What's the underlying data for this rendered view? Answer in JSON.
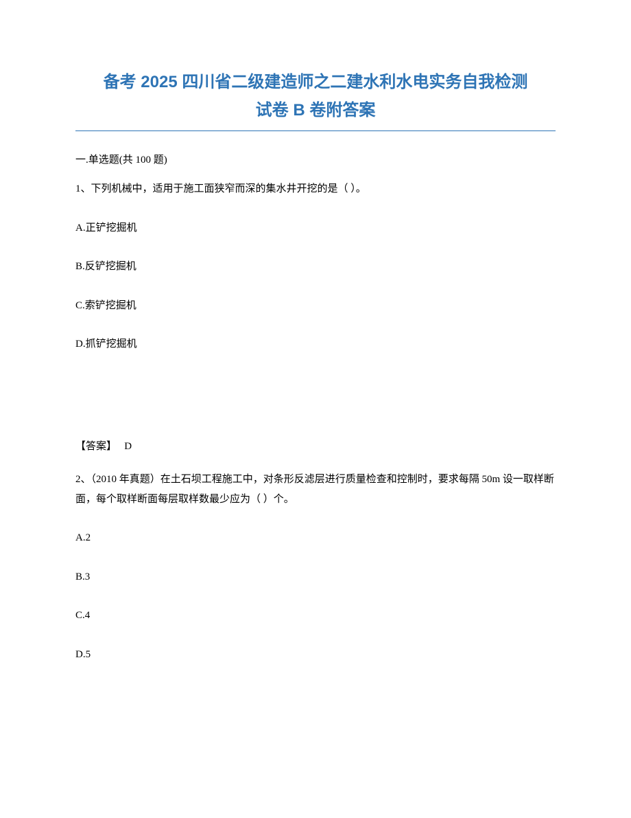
{
  "title": {
    "line1": "备考 2025 四川省二级建造师之二建水利水电实务自我检测",
    "line2": "试卷 B 卷附答案",
    "color": "#2e74b5",
    "divider_color": "#2e74b5",
    "fontsize": 24
  },
  "section": {
    "heading": "一.单选题(共 100 题)"
  },
  "body_text_color": "#000000",
  "body_fontsize": 15,
  "questions": [
    {
      "number": "1、",
      "stem": "下列机械中，适用于施工面狭窄而深的集水井开挖的是（   ）。",
      "options": [
        {
          "label": "A.正铲挖掘机"
        },
        {
          "label": "B.反铲挖掘机"
        },
        {
          "label": "C.索铲挖掘机"
        },
        {
          "label": "D.抓铲挖掘机"
        }
      ],
      "answer_label": "【答案】",
      "answer_value": "D"
    },
    {
      "number": "2、",
      "stem": "（2010 年真题）在土石坝工程施工中，对条形反滤层进行质量检查和控制时，要求每隔 50m 设一取样断面，每个取样断面每层取样数最少应为（  ）个。",
      "options": [
        {
          "label": "A.2"
        },
        {
          "label": "B.3"
        },
        {
          "label": "C.4"
        },
        {
          "label": "D.5"
        }
      ]
    }
  ]
}
